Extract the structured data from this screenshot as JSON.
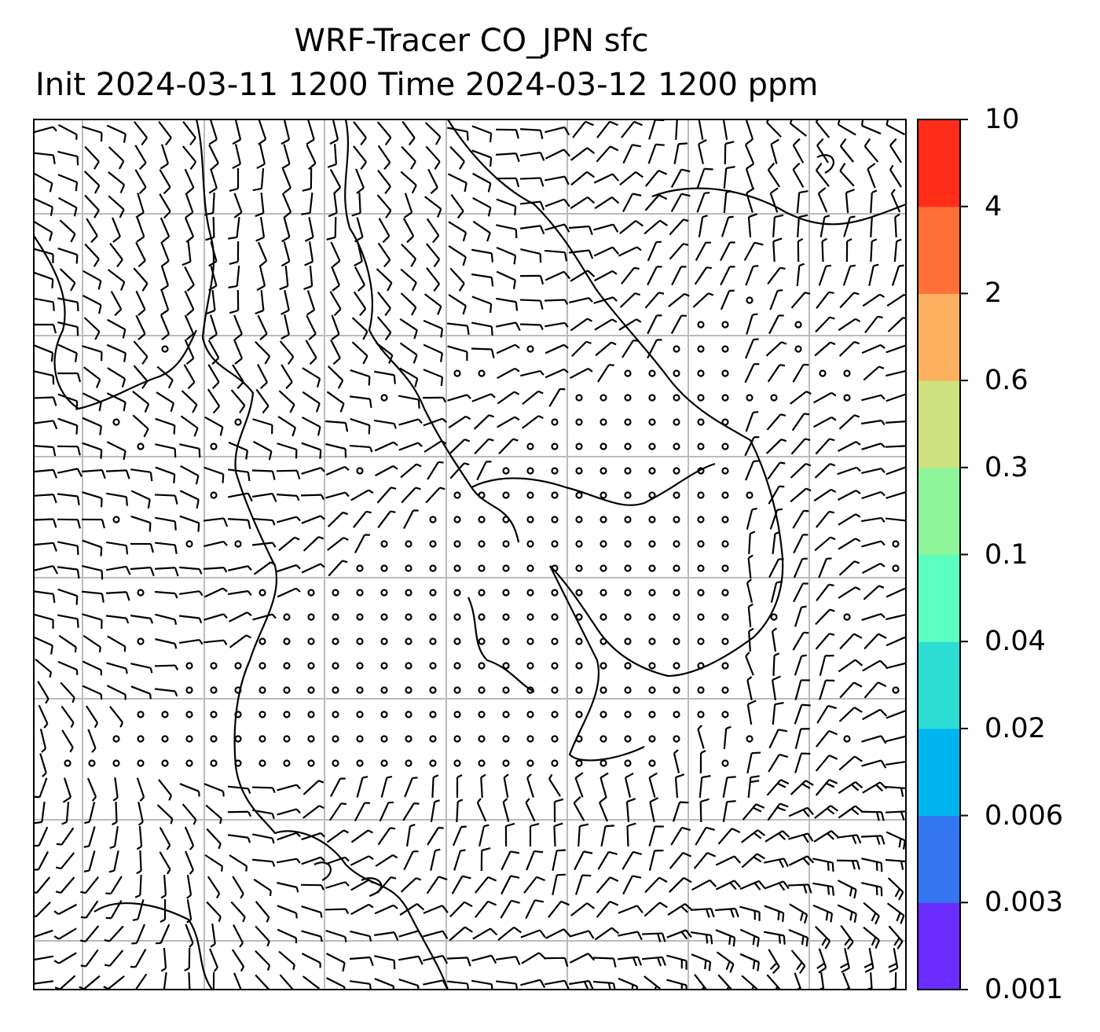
{
  "title": {
    "line1": "WRF-Tracer CO_JPN sfc",
    "line2": "Init 2024-03-11 1200 Time 2024-03-12 1200 ppm"
  },
  "colorbar": {
    "levels": [
      "0.001",
      "0.003",
      "0.006",
      "0.02",
      "0.04",
      "0.1",
      "0.3",
      "0.6",
      "2",
      "4",
      "10"
    ],
    "colors": [
      "#6b2cff",
      "#3376f0",
      "#00b4ee",
      "#2ddcd2",
      "#5dffc0",
      "#8ef59a",
      "#cfe07e",
      "#fcb060",
      "#ff7038",
      "#ff2c18"
    ]
  },
  "map": {
    "grid_color": "#bbbbbb",
    "barb_color": "#000000",
    "coastline_color": "#000000",
    "calm_marker": "circle",
    "field_visible": "wind barbs only, no shaded concentrations"
  }
}
